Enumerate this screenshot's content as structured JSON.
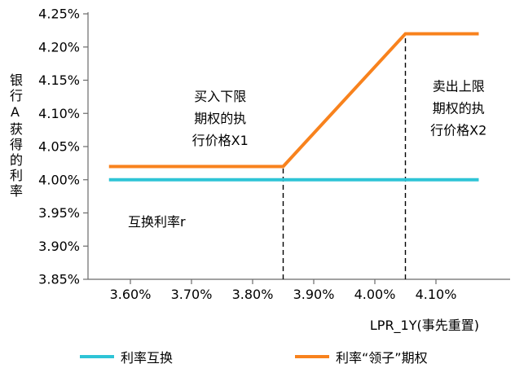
{
  "chart_data": {
    "type": "line",
    "title": "",
    "y_axis_title": "银行A获得的利率",
    "x_axis_title": "LPR_1Y(事先重置)",
    "xlim": [
      3.55,
      4.22
    ],
    "ylim": [
      3.85,
      4.25
    ],
    "grid": false,
    "legend_position": "bottom",
    "y_ticks": [
      {
        "label": "3.85%",
        "value": 3.85
      },
      {
        "label": "3.90%",
        "value": 3.9
      },
      {
        "label": "3.95%",
        "value": 3.95
      },
      {
        "label": "4.00%",
        "value": 4.0
      },
      {
        "label": "4.05%",
        "value": 4.05
      },
      {
        "label": "4.10%",
        "value": 4.1
      },
      {
        "label": "4.15%",
        "value": 4.15
      },
      {
        "label": "4.20%",
        "value": 4.2
      },
      {
        "label": "4.25%",
        "value": 4.25
      }
    ],
    "x_ticks": [
      {
        "label": "3.60%",
        "value": 3.6
      },
      {
        "label": "3.70%",
        "value": 3.7
      },
      {
        "label": "3.80%",
        "value": 3.8
      },
      {
        "label": "3.90%",
        "value": 3.9
      },
      {
        "label": "4.00%",
        "value": 4.0
      },
      {
        "label": "4.10%",
        "value": 4.1
      }
    ],
    "series": [
      {
        "id": "swap",
        "name": "利率互换",
        "color": "#2ec4d6",
        "width": 4,
        "points": [
          [
            3.565,
            4.0
          ],
          [
            4.17,
            4.0
          ]
        ]
      },
      {
        "id": "collar",
        "name": "利率“领子”期权",
        "color": "#f8821d",
        "width": 4,
        "points": [
          [
            3.565,
            4.02
          ],
          [
            3.85,
            4.02
          ],
          [
            4.05,
            4.22
          ],
          [
            4.17,
            4.22
          ]
        ]
      }
    ],
    "strike_lines": [
      {
        "id": "x1",
        "x": 3.85,
        "y_top": 4.02
      },
      {
        "id": "x2",
        "x": 4.05,
        "y_top": 4.22
      }
    ],
    "annotations": [
      {
        "id": "floor-strike-label",
        "lines": [
          "买入下限",
          "期权的执",
          "行价格X1"
        ],
        "x": 3.747,
        "y": 4.093
      },
      {
        "id": "cap-strike-label",
        "lines": [
          "卖出上限",
          "期权的执",
          "行价格X2"
        ],
        "x": 4.137,
        "y": 4.108
      },
      {
        "id": "swap-rate-label",
        "lines": [
          "互换利率r"
        ],
        "x": 3.643,
        "y": 3.937
      }
    ],
    "legend": [
      {
        "label": "利率互换",
        "color": "#2ec4d6"
      },
      {
        "label": "利率“领子”期权",
        "color": "#f8821d"
      }
    ]
  }
}
